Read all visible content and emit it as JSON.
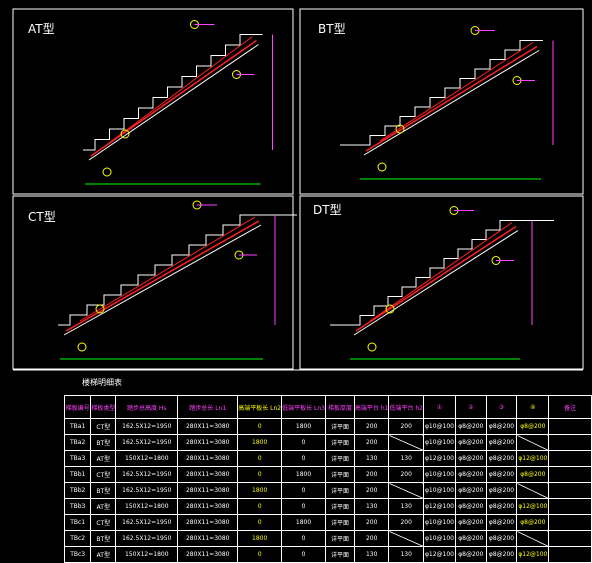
{
  "panels": [
    {
      "title": "AT型"
    },
    {
      "title": "BT型"
    },
    {
      "title": "CT型"
    },
    {
      "title": "DT型"
    }
  ],
  "table": {
    "title": "楼梯明细表",
    "headers": [
      "梯板编号",
      "梯板类型",
      "踏步总高度 Hs",
      "踏步总长 Ln1",
      "高端平板长 Ln2",
      "低端平板长 Ln3",
      "梯板厚度",
      "高端平台 h1",
      "低端平台 h2",
      "①",
      "②",
      "③",
      "④",
      "备注"
    ],
    "rows": [
      [
        "TBa1",
        "CT型",
        "162.5X12=1950",
        "280X11=3080",
        "0",
        "1800",
        "详平面",
        "200",
        "200",
        "φ10@100",
        "φ8@200",
        "φ8@200",
        "φ8@200",
        ""
      ],
      [
        "TBa2",
        "BT型",
        "162.5X12=1950",
        "280X11=3080",
        "1800",
        "0",
        "详平面",
        "200",
        "",
        "φ10@100",
        "φ8@200",
        "φ8@200",
        "",
        ""
      ],
      [
        "TBa3",
        "AT型",
        "150X12=1800",
        "280X11=3080",
        "0",
        "0",
        "详平面",
        "130",
        "130",
        "φ12@100",
        "φ8@200",
        "φ8@200",
        "φ12@100",
        ""
      ],
      [
        "TBb1",
        "CT型",
        "162.5X12=1950",
        "280X11=3080",
        "0",
        "1800",
        "详平面",
        "200",
        "200",
        "φ10@100",
        "φ8@200",
        "φ8@200",
        "φ8@200",
        ""
      ],
      [
        "TBb2",
        "BT型",
        "162.5X12=1950",
        "280X11=3080",
        "1800",
        "0",
        "详平面",
        "200",
        "",
        "φ10@100",
        "φ8@200",
        "φ8@200",
        "",
        ""
      ],
      [
        "TBb3",
        "AT型",
        "150X12=1800",
        "280X11=3080",
        "0",
        "0",
        "详平面",
        "130",
        "130",
        "φ12@100",
        "φ8@200",
        "φ8@200",
        "φ12@100",
        ""
      ],
      [
        "TBc1",
        "CT型",
        "162.5X12=1950",
        "280X11=3080",
        "0",
        "1800",
        "详平面",
        "200",
        "200",
        "φ10@100",
        "φ8@200",
        "φ8@200",
        "φ8@200",
        ""
      ],
      [
        "TBc2",
        "BT型",
        "162.5X12=1950",
        "280X11=3080",
        "1800",
        "0",
        "详平面",
        "200",
        "",
        "φ10@100",
        "φ8@200",
        "φ8@200",
        "",
        ""
      ],
      [
        "TBc3",
        "AT型",
        "150X12=1800",
        "280X11=3080",
        "0",
        "0",
        "详平面",
        "130",
        "130",
        "φ12@100",
        "φ8@200",
        "φ8@200",
        "φ12@100",
        ""
      ]
    ]
  },
  "colors": {
    "frame": "#ffffff",
    "rebar": "#ff2020",
    "label": "#ff40ff",
    "dim": "#00ff00",
    "stair": "#ffffff",
    "circle": "#ffff00",
    "table": "#00ffff"
  }
}
